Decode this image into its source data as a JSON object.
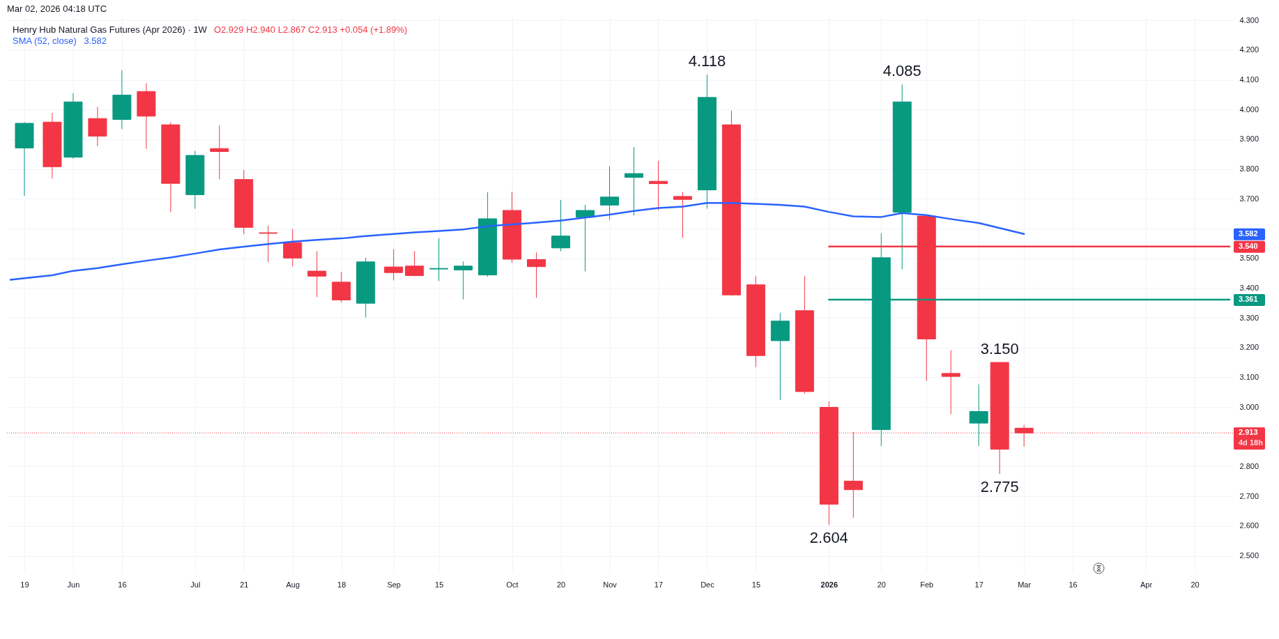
{
  "chart_data": {
    "type": "candlestick",
    "title": "Henry Hub Natural Gas Futures (Apr 2026) · 1W",
    "subtitle": "O2.929 H2.940 L2.867 C2.913 +0.054 (+1.89%)",
    "x": [
      "2025-05-19",
      "2025-05-27",
      "2025-06-02",
      "2025-06-09",
      "2025-06-16",
      "2025-06-23",
      "2025-06-30",
      "2025-07-07",
      "2025-07-14",
      "2025-07-21",
      "2025-07-28",
      "2025-08-04",
      "2025-08-11",
      "2025-08-18",
      "2025-08-25",
      "2025-09-02",
      "2025-09-08",
      "2025-09-15",
      "2025-09-22",
      "2025-09-29",
      "2025-10-06",
      "2025-10-13",
      "2025-10-20",
      "2025-10-27",
      "2025-11-03",
      "2025-11-10",
      "2025-11-17",
      "2025-11-24",
      "2025-12-01",
      "2025-12-08",
      "2025-12-15",
      "2025-12-22",
      "2025-12-29",
      "2026-01-05",
      "2026-01-12",
      "2026-01-20",
      "2026-01-26",
      "2026-02-02",
      "2026-02-09",
      "2026-02-17",
      "2026-02-23",
      "2026-03-02"
    ],
    "ohlc": [
      [
        3.871,
        3.958,
        3.71,
        3.954
      ],
      [
        3.958,
        3.989,
        3.768,
        3.808
      ],
      [
        3.84,
        4.055,
        3.835,
        4.026
      ],
      [
        3.97,
        4.009,
        3.877,
        3.911
      ],
      [
        3.967,
        4.132,
        3.935,
        4.049
      ],
      [
        4.061,
        4.089,
        3.868,
        3.978
      ],
      [
        3.949,
        3.958,
        3.655,
        3.752
      ],
      [
        3.714,
        3.861,
        3.667,
        3.846
      ],
      [
        3.869,
        3.947,
        3.766,
        3.859
      ],
      [
        3.765,
        3.797,
        3.581,
        3.604
      ],
      [
        3.586,
        3.61,
        3.487,
        3.584
      ],
      [
        3.553,
        3.599,
        3.473,
        3.501
      ],
      [
        3.457,
        3.524,
        3.37,
        3.44
      ],
      [
        3.42,
        3.455,
        3.352,
        3.36
      ],
      [
        3.349,
        3.502,
        3.301,
        3.488
      ],
      [
        3.471,
        3.531,
        3.426,
        3.452
      ],
      [
        3.474,
        3.524,
        3.44,
        3.442
      ],
      [
        3.464,
        3.567,
        3.424,
        3.466
      ],
      [
        3.461,
        3.49,
        3.362,
        3.474
      ],
      [
        3.444,
        3.722,
        3.438,
        3.633
      ],
      [
        3.661,
        3.724,
        3.485,
        3.497
      ],
      [
        3.496,
        3.52,
        3.367,
        3.472
      ],
      [
        3.535,
        3.696,
        3.524,
        3.575
      ],
      [
        3.638,
        3.68,
        3.456,
        3.661
      ],
      [
        3.679,
        3.809,
        3.629,
        3.706
      ],
      [
        3.772,
        3.874,
        3.644,
        3.785
      ],
      [
        3.759,
        3.828,
        3.661,
        3.751
      ],
      [
        3.708,
        3.723,
        3.569,
        3.698
      ],
      [
        3.73,
        4.118,
        3.667,
        4.041
      ],
      [
        3.949,
        3.996,
        3.374,
        3.377
      ],
      [
        3.411,
        3.441,
        3.134,
        3.173
      ],
      [
        3.223,
        3.317,
        3.024,
        3.289
      ],
      [
        3.324,
        3.441,
        3.045,
        3.052
      ],
      [
        2.999,
        3.019,
        2.604,
        2.673
      ],
      [
        2.751,
        2.916,
        2.628,
        2.722
      ],
      [
        2.924,
        3.584,
        2.869,
        3.502
      ],
      [
        3.655,
        4.085,
        3.463,
        4.026
      ],
      [
        3.642,
        3.645,
        3.088,
        3.229
      ],
      [
        3.113,
        3.191,
        2.976,
        3.103
      ],
      [
        2.946,
        3.076,
        2.869,
        2.985
      ],
      [
        3.15,
        3.15,
        2.775,
        2.858
      ],
      [
        2.929,
        2.94,
        2.867,
        2.913
      ]
    ],
    "colors": [
      "#089981",
      "#f23645",
      "#089981",
      "#f23645",
      "#089981",
      "#f23645",
      "#f23645",
      "#089981",
      "#f23645",
      "#f23645",
      "#f23645",
      "#f23645",
      "#f23645",
      "#f23645",
      "#089981",
      "#f23645",
      "#f23645",
      "#089981",
      "#089981",
      "#089981",
      "#f23645",
      "#f23645",
      "#089981",
      "#089981",
      "#089981",
      "#089981",
      "#f23645",
      "#f23645",
      "#089981",
      "#f23645",
      "#f23645",
      "#089981",
      "#f23645",
      "#f23645",
      "#f23645",
      "#089981",
      "#089981",
      "#f23645",
      "#f23645",
      "#089981",
      "#f23645",
      "#f23645"
    ],
    "series": [
      {
        "name": "SMA (52, close)",
        "type": "line",
        "color": "#2962ff",
        "x": [
          "2025-05-15",
          "2025-05-19",
          "2025-05-27",
          "2025-06-02",
          "2025-06-09",
          "2025-06-16",
          "2025-06-23",
          "2025-06-30",
          "2025-07-07",
          "2025-07-14",
          "2025-07-21",
          "2025-07-28",
          "2025-08-04",
          "2025-08-11",
          "2025-08-18",
          "2025-08-25",
          "2025-09-02",
          "2025-09-08",
          "2025-09-15",
          "2025-09-22",
          "2025-09-29",
          "2025-10-06",
          "2025-10-13",
          "2025-10-20",
          "2025-10-27",
          "2025-11-03",
          "2025-11-10",
          "2025-11-17",
          "2025-11-24",
          "2025-12-01",
          "2025-12-08",
          "2025-12-15",
          "2025-12-22",
          "2025-12-29",
          "2026-01-05",
          "2026-01-12",
          "2026-01-20",
          "2026-01-26",
          "2026-02-02",
          "2026-02-09",
          "2026-02-17",
          "2026-02-23",
          "2026-03-02"
        ],
        "values": [
          3.428,
          3.433,
          3.443,
          3.458,
          3.467,
          3.48,
          3.492,
          3.503,
          3.516,
          3.53,
          3.539,
          3.548,
          3.556,
          3.562,
          3.567,
          3.575,
          3.582,
          3.587,
          3.592,
          3.597,
          3.608,
          3.614,
          3.62,
          3.627,
          3.637,
          3.647,
          3.659,
          3.669,
          3.674,
          3.686,
          3.686,
          3.683,
          3.68,
          3.674,
          3.656,
          3.641,
          3.639,
          3.652,
          3.645,
          3.632,
          3.619,
          3.602,
          3.582
        ]
      },
      {
        "type": "line",
        "color": "#f23645",
        "x": [
          "2026-01-05",
          "2026-04-30"
        ],
        "values": [
          3.54,
          3.54
        ],
        "value_labels": [
          null,
          "3.540"
        ]
      },
      {
        "type": "line",
        "color": "#089981",
        "x": [
          "2026-01-05",
          "2026-04-30"
        ],
        "values": [
          3.361,
          3.361
        ],
        "value_labels": [
          null,
          "3.361"
        ]
      }
    ],
    "ref_lines": [
      {
        "axis": "y",
        "value": 2.913,
        "label": "2.913\n4d 18h",
        "color": "#f23645",
        "line_style": "dotted"
      }
    ],
    "annotations": [
      "Mar 02, 2026 04:18 UTC",
      "3.582",
      {
        "text": "4.118",
        "x": "2025-12-01",
        "y": 4.118
      },
      {
        "text": "4.085",
        "x": "2026-01-26",
        "y": 4.085
      },
      {
        "text": "2.604",
        "x": "2026-01-05",
        "y": 2.604
      },
      {
        "text": "3.150",
        "x": "2026-02-23",
        "y": 3.15
      },
      {
        "text": "2.775",
        "x": "2026-02-23",
        "y": 2.775
      }
    ],
    "xlim": [
      "2025-05-15",
      "2026-04-30"
    ],
    "xticks": [
      {
        "value": "2025-05-19",
        "label": "19"
      },
      {
        "value": "2025-06-02",
        "label": "Jun"
      },
      {
        "value": "2025-06-16",
        "label": "16"
      },
      {
        "value": "2025-07-07",
        "label": "Jul"
      },
      {
        "value": "2025-07-21",
        "label": "21"
      },
      {
        "value": "2025-08-04",
        "label": "Aug"
      },
      {
        "value": "2025-08-18",
        "label": "18"
      },
      {
        "value": "2025-09-02",
        "label": "Sep"
      },
      {
        "value": "2025-09-15",
        "label": "15"
      },
      {
        "value": "2025-10-06",
        "label": "Oct"
      },
      {
        "value": "2025-10-20",
        "label": "20"
      },
      {
        "value": "2025-11-03",
        "label": "Nov"
      },
      {
        "value": "2025-11-17",
        "label": "17"
      },
      {
        "value": "2025-12-01",
        "label": "Dec"
      },
      {
        "value": "2025-12-15",
        "label": "15"
      },
      {
        "value": "2026-01-05",
        "label": "2026"
      },
      {
        "value": "2026-01-20",
        "label": "20"
      },
      {
        "value": "2026-02-02",
        "label": "Feb"
      },
      {
        "value": "2026-02-17",
        "label": "17"
      },
      {
        "value": "2026-03-02",
        "label": "Mar"
      },
      {
        "value": "2026-03-16",
        "label": "16"
      },
      {
        "value": "2026-04-06",
        "label": "Apr"
      },
      {
        "value": "2026-04-20",
        "label": "20"
      }
    ],
    "ylim": [
      2.445,
      4.31
    ],
    "yticks": [
      {
        "value": 2.5,
        "label": "2.500"
      },
      {
        "value": 2.6,
        "label": "2.600"
      },
      {
        "value": 2.7,
        "label": "2.700"
      },
      {
        "value": 2.8,
        "label": "2.800"
      },
      {
        "value": 2.9,
        "label": null
      },
      {
        "value": 3.0,
        "label": "3.000"
      },
      {
        "value": 3.1,
        "label": "3.100"
      },
      {
        "value": 3.2,
        "label": "3.200"
      },
      {
        "value": 3.3,
        "label": "3.300"
      },
      {
        "value": 3.4,
        "label": "3.400"
      },
      {
        "value": 3.5,
        "label": "3.500"
      },
      {
        "value": 3.6,
        "label": null
      },
      {
        "value": 3.7,
        "label": "3.700"
      },
      {
        "value": 3.8,
        "label": "3.800"
      },
      {
        "value": 3.9,
        "label": "3.900"
      },
      {
        "value": 4.0,
        "label": "4.000"
      },
      {
        "value": 4.1,
        "label": "4.100"
      },
      {
        "value": 4.2,
        "label": "4.200"
      },
      {
        "value": 4.3,
        "label": "4.300"
      }
    ],
    "grid": true,
    "legend": "top left"
  }
}
